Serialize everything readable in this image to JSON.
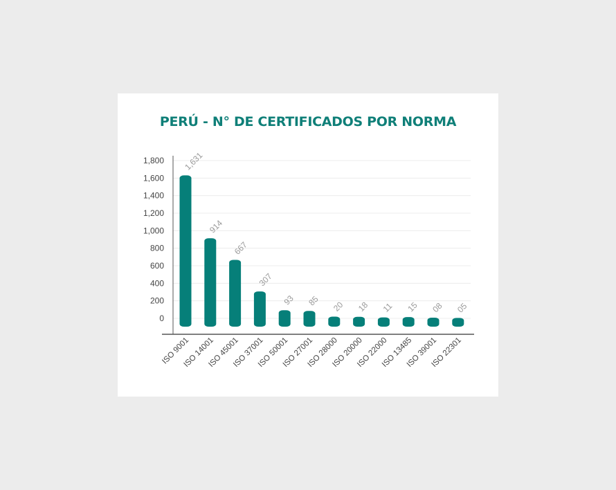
{
  "chart_data": {
    "type": "bar",
    "title": "PERÚ - N° DE CERTIFICADOS POR NORMA",
    "categories": [
      "ISO 9001",
      "ISO 14001",
      "ISO 45001",
      "ISO 37001",
      "ISO 50001",
      "ISO 27001",
      "ISO 28000",
      "ISO 20000",
      "ISO 22000",
      "ISO 13485",
      "ISO 39001",
      "ISO 22301"
    ],
    "values": [
      1631,
      914,
      667,
      307,
      93,
      85,
      20,
      18,
      11,
      15,
      8,
      5
    ],
    "data_labels": [
      "1,631",
      "914",
      "667",
      "307",
      "93",
      "85",
      "20",
      "18",
      "11",
      "15",
      "08",
      "05"
    ],
    "y_ticks": [
      "0",
      "200",
      "400",
      "600",
      "800",
      "1,000",
      "1,200",
      "1,400",
      "1,600",
      "1,800"
    ],
    "ylim": [
      0,
      1800
    ],
    "bar_color": "#067f79",
    "grid": true,
    "legend": "none"
  }
}
